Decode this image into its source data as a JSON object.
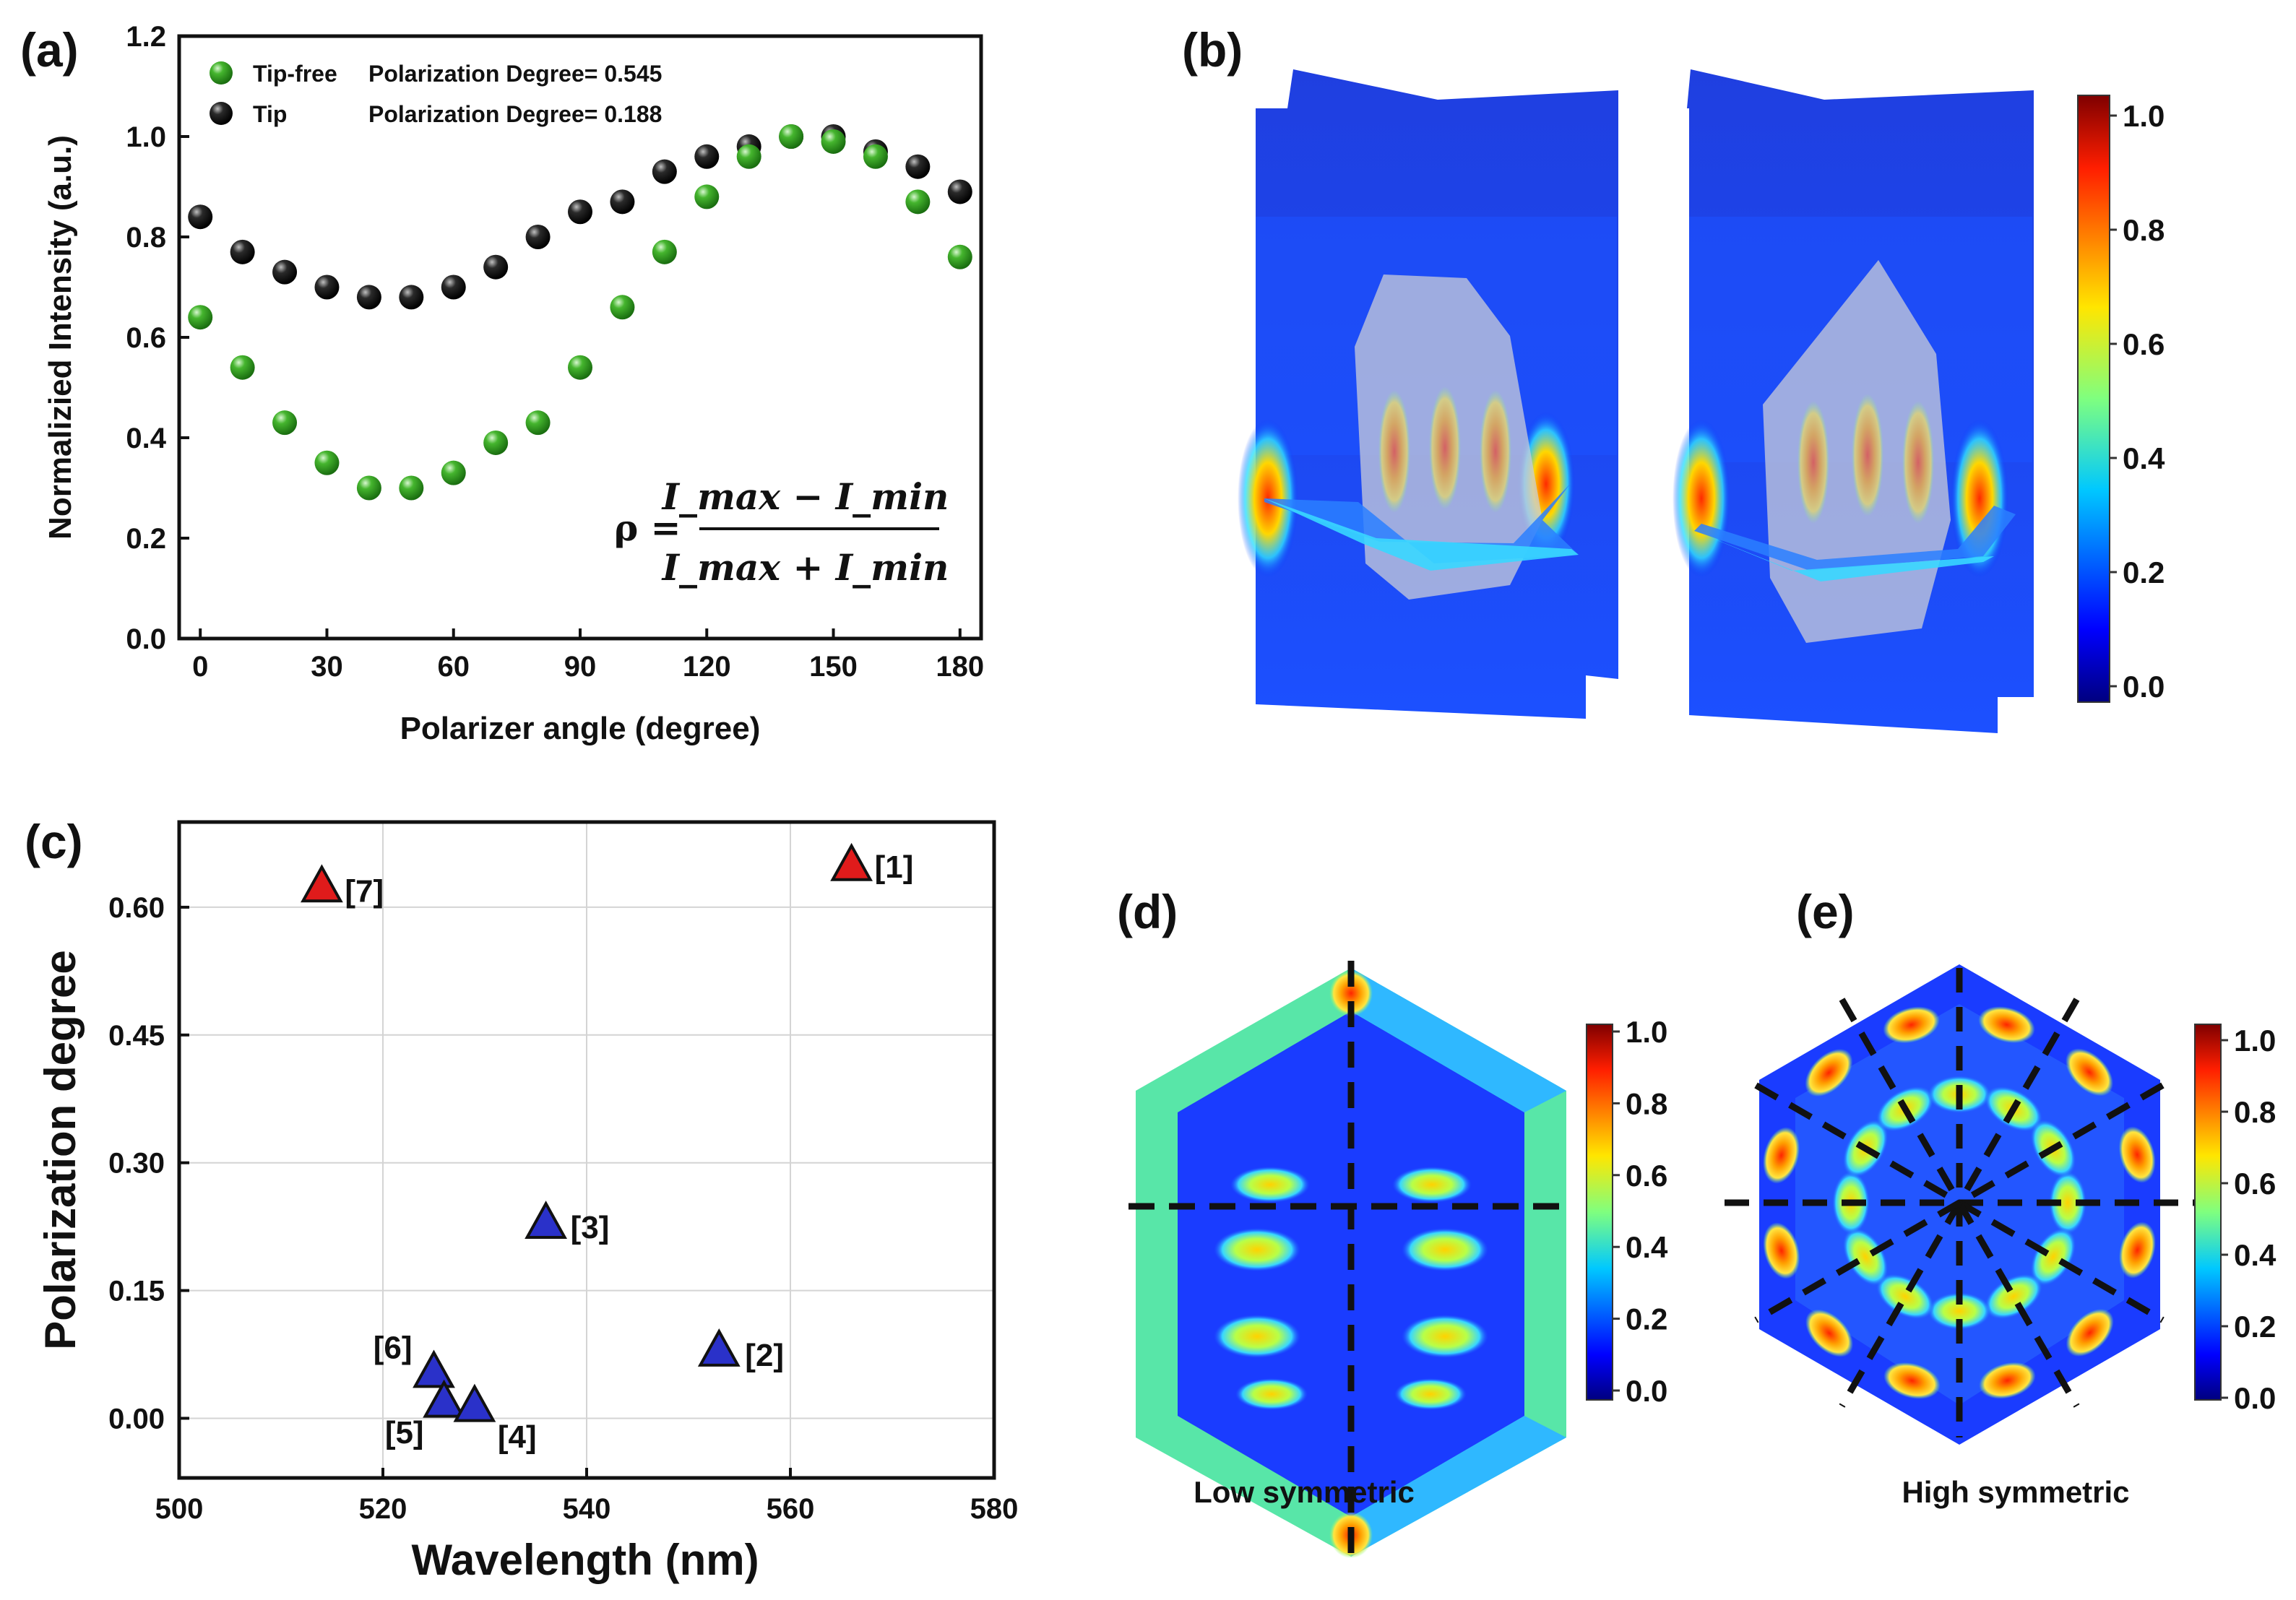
{
  "panels": {
    "a": {
      "label": "(a)"
    },
    "b": {
      "label": "(b)"
    },
    "c": {
      "label": "(c)"
    },
    "d": {
      "label": "(d)",
      "caption": "Low symmetric"
    },
    "e": {
      "label": "(e)",
      "caption": "High symmetric"
    }
  },
  "formula": {
    "lhs": "ρ =",
    "numerator": "I_max − I_min",
    "denominator": "I_max + I_min"
  },
  "colors": {
    "tip_free": "#2e9a1e",
    "tip": "#111111",
    "red_marker": "#e01b1b",
    "blue_marker": "#2a31c9"
  },
  "colorbar_b": {
    "ticks": [
      "1.0",
      "0.8",
      "0.6",
      "0.4",
      "0.2",
      "0.0"
    ]
  },
  "colorbar_d": {
    "ticks": [
      "1.0",
      "0.8",
      "0.6",
      "0.4",
      "0.2",
      "0.0"
    ]
  },
  "colorbar_e": {
    "ticks": [
      "1.0",
      "0.8",
      "0.6",
      "0.4",
      "0.2",
      "0.0"
    ]
  },
  "chart_data": [
    {
      "id": "a",
      "type": "scatter",
      "title": "",
      "xlabel": "Polarizer angle (degree)",
      "ylabel": "Normalizied Intensity (a.u.)",
      "xlim": [
        -5,
        185
      ],
      "ylim": [
        0,
        1.2
      ],
      "xticks": [
        "0",
        "30",
        "60",
        "90",
        "120",
        "150",
        "180"
      ],
      "yticks": [
        "0.0",
        "0.2",
        "0.4",
        "0.6",
        "0.8",
        "1.0",
        "1.2"
      ],
      "legend_position": "top-left",
      "x": [
        0,
        10,
        20,
        30,
        40,
        50,
        60,
        70,
        80,
        90,
        100,
        110,
        120,
        130,
        140,
        150,
        160,
        170,
        180
      ],
      "series": [
        {
          "name": "Tip-free",
          "annotation": "Polarization Degree= 0.545",
          "values": [
            0.64,
            0.54,
            0.43,
            0.35,
            0.3,
            0.3,
            0.33,
            0.39,
            0.43,
            0.54,
            0.66,
            0.77,
            0.88,
            0.96,
            1.0,
            0.99,
            0.96,
            0.87,
            0.76
          ]
        },
        {
          "name": "Tip",
          "annotation": "Polarization Degree= 0.188",
          "values": [
            0.84,
            0.77,
            0.73,
            0.7,
            0.68,
            0.68,
            0.7,
            0.74,
            0.8,
            0.85,
            0.87,
            0.93,
            0.96,
            0.98,
            1.0,
            1.0,
            0.97,
            0.94,
            0.89
          ]
        }
      ]
    },
    {
      "id": "c",
      "type": "scatter",
      "title": "",
      "xlabel": "Wavelength (nm)",
      "ylabel": "Polarization degree",
      "xlim": [
        500,
        580
      ],
      "ylim": [
        -0.07,
        0.7
      ],
      "xticks": [
        "500",
        "520",
        "540",
        "560",
        "580"
      ],
      "yticks": [
        "0.00",
        "0.15",
        "0.30",
        "0.45",
        "0.60"
      ],
      "grid": true,
      "points": [
        {
          "label": "[1]",
          "x": 566,
          "y": 0.65,
          "color": "red"
        },
        {
          "label": "[7]",
          "x": 514,
          "y": 0.625,
          "color": "red"
        },
        {
          "label": "[3]",
          "x": 536,
          "y": 0.23,
          "color": "blue"
        },
        {
          "label": "[2]",
          "x": 553,
          "y": 0.08,
          "color": "blue"
        },
        {
          "label": "[6]",
          "x": 525,
          "y": 0.055,
          "color": "blue"
        },
        {
          "label": "[5]",
          "x": 526,
          "y": 0.02,
          "color": "blue"
        },
        {
          "label": "[4]",
          "x": 529,
          "y": 0.015,
          "color": "blue"
        }
      ]
    }
  ]
}
